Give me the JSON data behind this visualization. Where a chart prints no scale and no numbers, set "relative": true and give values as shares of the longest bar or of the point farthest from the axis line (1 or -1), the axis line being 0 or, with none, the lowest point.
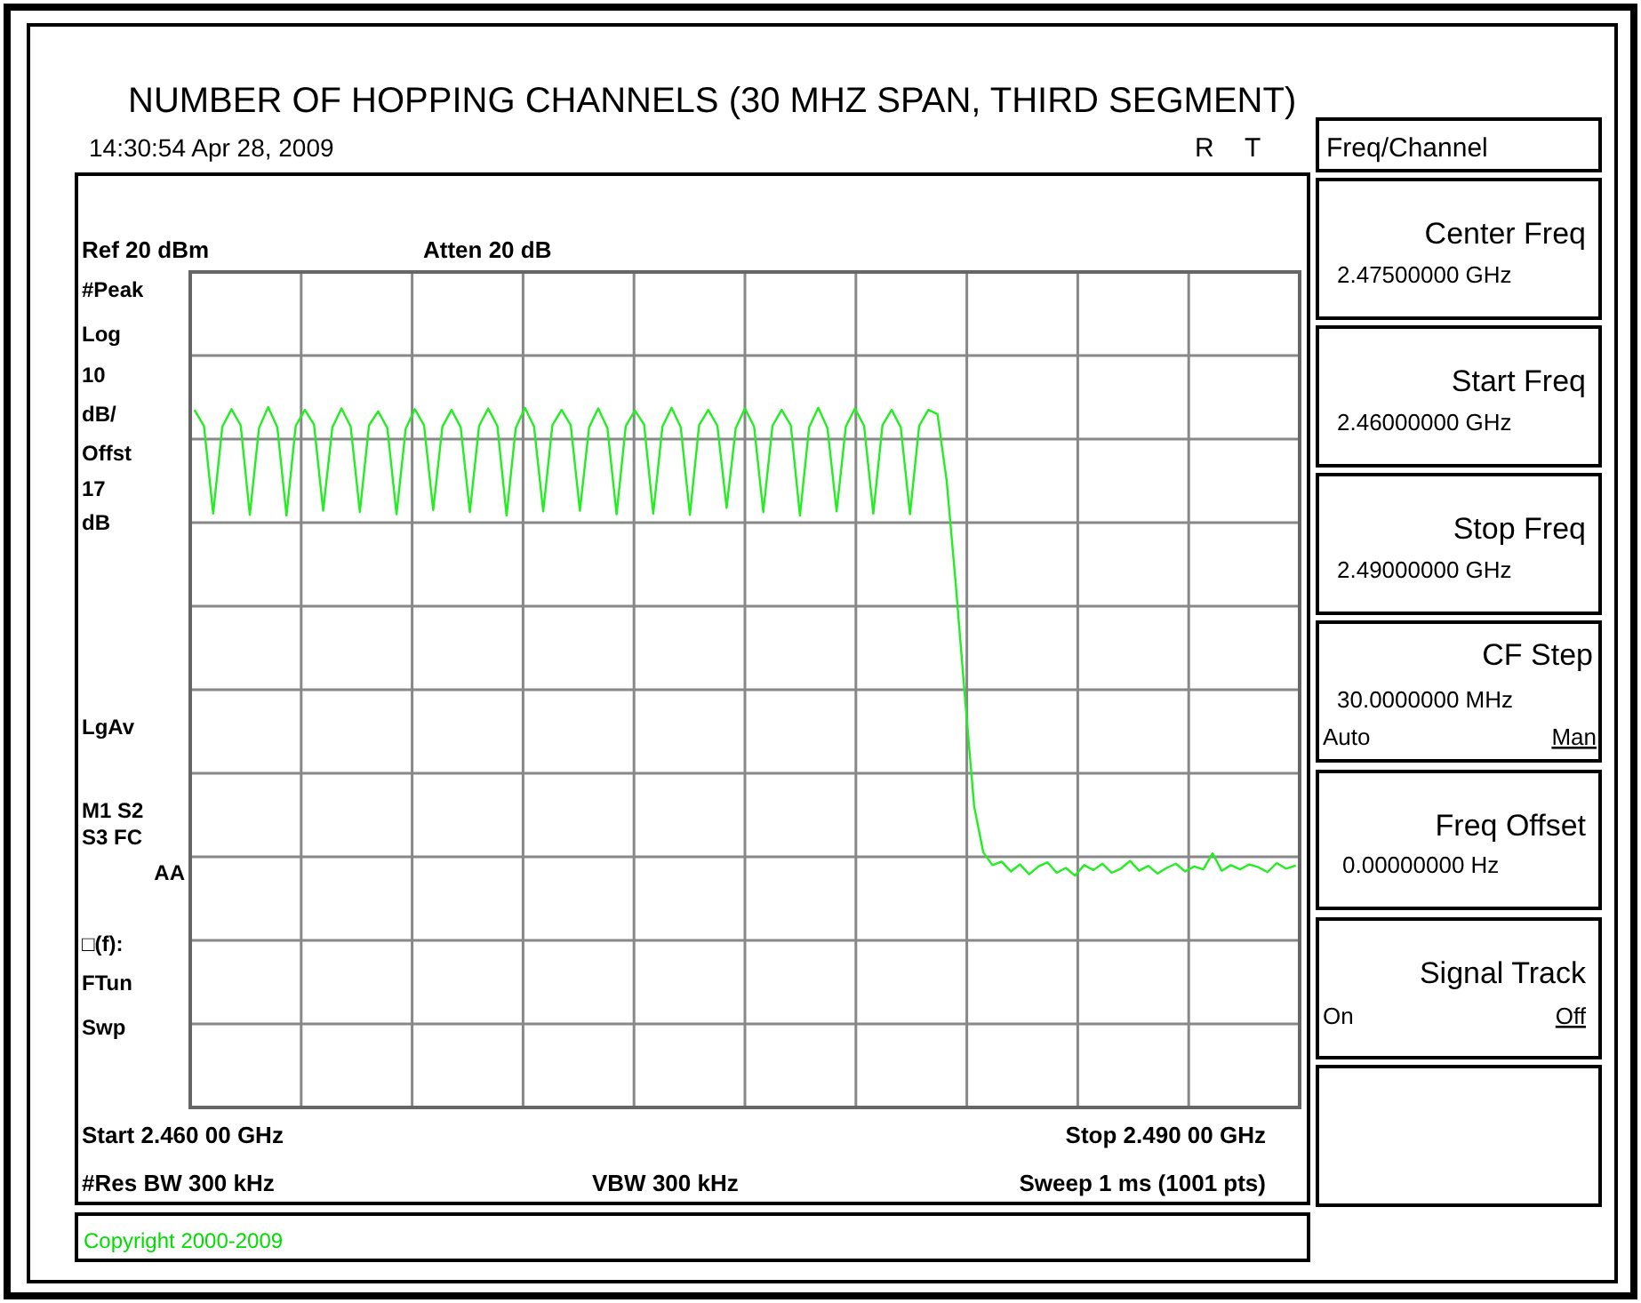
{
  "chart_data": {
    "type": "line",
    "title": "NUMBER OF HOPPING CHANNELS (30 MHZ SPAN, THIRD SEGMENT)",
    "relative": true,
    "categories": [
      null,
      null,
      null,
      null,
      null,
      null,
      null,
      null,
      null,
      null,
      null,
      null,
      null,
      null,
      null,
      null,
      null,
      null,
      null,
      null,
      null,
      null,
      null,
      null,
      null,
      null,
      null,
      null,
      null,
      null,
      null,
      null,
      null,
      null,
      null,
      null,
      null,
      null,
      null,
      null,
      null,
      null,
      null,
      null,
      null,
      null,
      null,
      null,
      null,
      null,
      null,
      null,
      null,
      null,
      null,
      null,
      null,
      null,
      null,
      null,
      null,
      null,
      null,
      null,
      null,
      null,
      null,
      null,
      null,
      null,
      null,
      null,
      null,
      null,
      null,
      null,
      null,
      null,
      null,
      null,
      null,
      null,
      null,
      null,
      null,
      null,
      null,
      null,
      null,
      null,
      null,
      null,
      null,
      null,
      null,
      null,
      null,
      null,
      null,
      null,
      null,
      null,
      null,
      null,
      null,
      null,
      null,
      null,
      null,
      null,
      null,
      null,
      null,
      null,
      null,
      null,
      null,
      null,
      null,
      null,
      null
    ],
    "grid": true,
    "marker": "none",
    "line_style": "solid",
    "series": [
      {
        "color": "#22ee22",
        "values": [
          0.995,
          0.973,
          0.848,
          0.972,
          0.997,
          0.974,
          0.846,
          0.97,
          1.0,
          0.971,
          0.845,
          0.973,
          0.996,
          0.975,
          0.852,
          0.971,
          0.998,
          0.972,
          0.85,
          0.974,
          0.994,
          0.97,
          0.847,
          0.969,
          0.997,
          0.974,
          0.853,
          0.972,
          0.996,
          0.971,
          0.85,
          0.973,
          0.998,
          0.973,
          0.845,
          0.97,
          0.999,
          0.972,
          0.851,
          0.974,
          0.996,
          0.974,
          0.852,
          0.971,
          0.998,
          0.97,
          0.847,
          0.973,
          0.995,
          0.975,
          0.848,
          0.972,
          0.999,
          0.971,
          0.846,
          0.974,
          0.996,
          0.973,
          0.856,
          0.97,
          0.998,
          0.972,
          0.85,
          0.973,
          0.996,
          0.974,
          0.845,
          0.971,
          0.999,
          0.97,
          0.851,
          0.972,
          0.998,
          0.973,
          0.848,
          0.974,
          0.996,
          0.971,
          0.847,
          0.973,
          0.996,
          0.99,
          0.895,
          0.746,
          0.585,
          0.43,
          0.364,
          0.346,
          0.351,
          0.337,
          0.347,
          0.333,
          0.344,
          0.35,
          0.335,
          0.342,
          0.331,
          0.346,
          0.339,
          0.348,
          0.335,
          0.341,
          0.352,
          0.338,
          0.345,
          0.334,
          0.342,
          0.348,
          0.337,
          0.344,
          0.34,
          0.363,
          0.338,
          0.346,
          0.34,
          0.347,
          0.343,
          0.336,
          0.349,
          0.341,
          0.345
        ]
      }
    ],
    "annotations": [
      "14:30:54 Apr 28, 2009",
      "R",
      "T",
      "Freq/Channel",
      "Atten 20 dB",
      "#Peak",
      "Log",
      "10",
      "dB/",
      "Offst",
      "17",
      "dB",
      "LgAv",
      "M1 S2",
      "S3 FC",
      "AA",
      "□(f):",
      "FTun",
      "Swp",
      "#Res BW 300 kHz",
      "VBW 300 kHz",
      "Sweep 1 ms (1001 pts)",
      "Center Freq",
      "2.47500000 GHz",
      "Start Freq",
      "2.46000000 GHz",
      "Stop Freq",
      "2.49000000 GHz",
      "CF Step",
      "30.0000000 MHz",
      "Auto",
      "Man",
      "Freq Offset",
      "0.00000000 Hz",
      "Signal Track",
      "On",
      "Off",
      "Copyright 2000-2009",
      "Ref 20 dBm",
      "Start 2.460 00 GHz",
      "Stop 2.490 00 GHz"
    ]
  }
}
